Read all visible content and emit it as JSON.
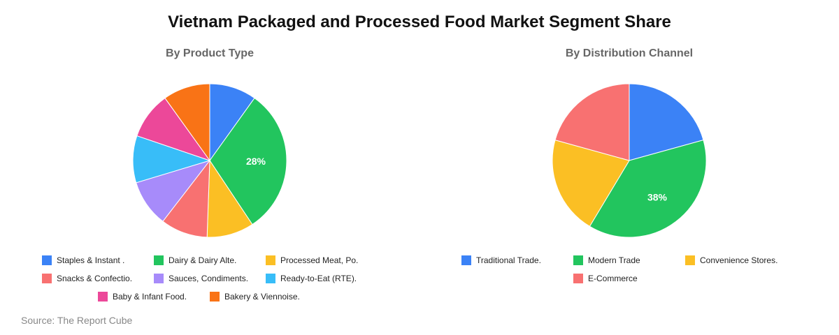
{
  "title": "Vietnam Packaged and Processed Food Market Segment Share",
  "source": "Source: The Report Cube",
  "chart_data": [
    {
      "type": "pie",
      "title": "By Product Type",
      "labels": [
        "Staples & Instant .",
        "Dairy & Dairy Alte.",
        "Processed Meat, Po.",
        "Snacks & Confectio.",
        "Sauces, Condiments.",
        "Ready-to-Eat (RTE).",
        "Baby & Infant Food.",
        "Bakery & Viennoise."
      ],
      "values": [
        9,
        28,
        9,
        9,
        9,
        9,
        9,
        9
      ],
      "slice_labels": [
        "",
        "28%",
        "",
        "",
        "",
        "",
        "",
        ""
      ],
      "slice_order": [
        0,
        1,
        2,
        3,
        4,
        5,
        6,
        7
      ],
      "colors": [
        "#3b82f6",
        "#22c55e",
        "#fbbf24",
        "#f87171",
        "#a78bfa",
        "#38bdf8",
        "#ec4899",
        "#f97316"
      ],
      "legend_position": "bottom"
    },
    {
      "type": "pie",
      "title": "By Distribution Channel",
      "labels": [
        "Traditional Trade.",
        "Modern Trade",
        "Convenience Stores.",
        "E-Commerce"
      ],
      "values": [
        20.7,
        37.9,
        20.7,
        20.7
      ],
      "slice_labels": [
        "",
        "38%",
        "",
        ""
      ],
      "slice_order": [
        0,
        1,
        2,
        3
      ],
      "colors": [
        "#3b82f6",
        "#22c55e",
        "#fbbf24",
        "#f87171"
      ],
      "legend_position": "bottom"
    }
  ]
}
